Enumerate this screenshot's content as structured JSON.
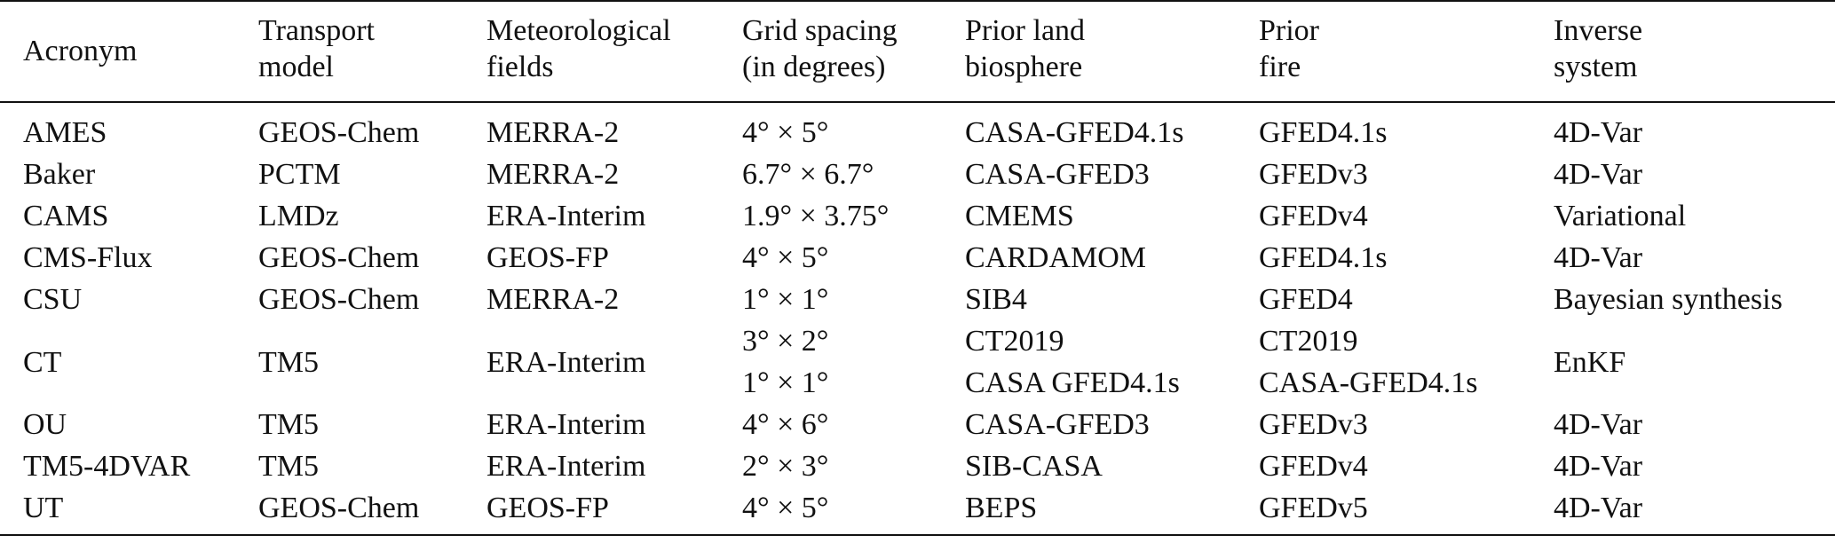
{
  "table": {
    "headers": [
      [
        "Acronym"
      ],
      [
        "Transport",
        "model"
      ],
      [
        "Meteorological",
        "fields"
      ],
      [
        "Grid spacing",
        "(in degrees)"
      ],
      [
        "Prior land",
        "biosphere"
      ],
      [
        "Prior",
        "fire"
      ],
      [
        "Inverse",
        "system"
      ]
    ],
    "rows": [
      {
        "acronym": "AMES",
        "transport": "GEOS-Chem",
        "met": "MERRA-2",
        "grid": [
          "4° × 5°"
        ],
        "land": [
          "CASA-GFED4.1s"
        ],
        "fire": [
          "GFED4.1s"
        ],
        "inverse": "4D-Var"
      },
      {
        "acronym": "Baker",
        "transport": "PCTM",
        "met": "MERRA-2",
        "grid": [
          "6.7° × 6.7°"
        ],
        "land": [
          "CASA-GFED3"
        ],
        "fire": [
          "GFEDv3"
        ],
        "inverse": "4D-Var"
      },
      {
        "acronym": "CAMS",
        "transport": "LMDz",
        "met": "ERA-Interim",
        "grid": [
          "1.9° × 3.75°"
        ],
        "land": [
          "CMEMS"
        ],
        "fire": [
          "GFEDv4"
        ],
        "inverse": "Variational"
      },
      {
        "acronym": "CMS-Flux",
        "transport": "GEOS-Chem",
        "met": "GEOS-FP",
        "grid": [
          "4° × 5°"
        ],
        "land": [
          "CARDAMOM"
        ],
        "fire": [
          "GFED4.1s"
        ],
        "inverse": "4D-Var"
      },
      {
        "acronym": "CSU",
        "transport": "GEOS-Chem",
        "met": "MERRA-2",
        "grid": [
          "1° × 1°"
        ],
        "land": [
          "SIB4"
        ],
        "fire": [
          "GFED4"
        ],
        "inverse": "Bayesian synthesis"
      },
      {
        "acronym": "CT",
        "transport": "TM5",
        "met": "ERA-Interim",
        "grid": [
          "3° × 2°",
          "1° × 1°"
        ],
        "land": [
          "CT2019",
          "CASA GFED4.1s"
        ],
        "fire": [
          "CT2019",
          "CASA-GFED4.1s"
        ],
        "inverse": "EnKF"
      },
      {
        "acronym": "OU",
        "transport": "TM5",
        "met": "ERA-Interim",
        "grid": [
          "4° × 6°"
        ],
        "land": [
          "CASA-GFED3"
        ],
        "fire": [
          "GFEDv3"
        ],
        "inverse": "4D-Var"
      },
      {
        "acronym": "TM5-4DVAR",
        "transport": "TM5",
        "met": "ERA-Interim",
        "grid": [
          "2° × 3°"
        ],
        "land": [
          "SIB-CASA"
        ],
        "fire": [
          "GFEDv4"
        ],
        "inverse": "4D-Var"
      },
      {
        "acronym": "UT",
        "transport": "GEOS-Chem",
        "met": "GEOS-FP",
        "grid": [
          "4° × 5°"
        ],
        "land": [
          "BEPS"
        ],
        "fire": [
          "GFEDv5"
        ],
        "inverse": "4D-Var"
      }
    ]
  }
}
